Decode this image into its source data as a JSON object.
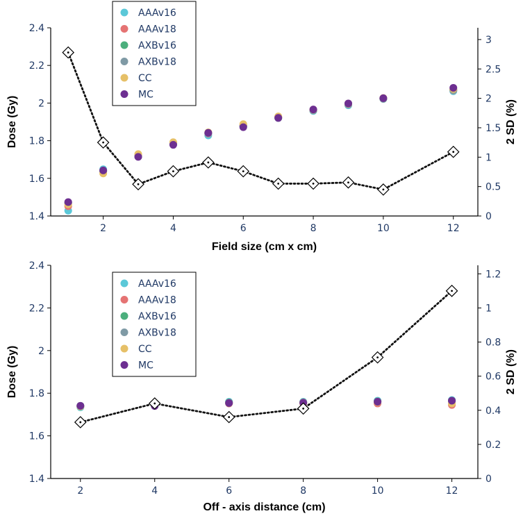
{
  "chart_data": [
    {
      "type": "scatter",
      "panel": "top",
      "xlabel": "Field size (cm x cm)",
      "ylabel": "Dose (Gy)",
      "y2label": "2 SD (%)",
      "xlim": [
        0.5,
        12.7
      ],
      "ylim": [
        1.4,
        2.4
      ],
      "y2lim": [
        0,
        3.2
      ],
      "xticks": [
        "2",
        "4",
        "6",
        "8",
        "10",
        "12"
      ],
      "yticks": [
        "1.4",
        "1.6",
        "1.8",
        "2",
        "2.2",
        "2.4"
      ],
      "y2ticks": [
        "0",
        "0.5",
        "1",
        "1.5",
        "2",
        "2.5",
        "3"
      ],
      "legend_position": "top-left",
      "x": [
        1,
        2,
        3,
        4,
        5,
        6,
        7,
        8,
        9,
        10,
        12
      ],
      "series": [
        {
          "name": "AAAv16",
          "color": "#5bc8d8",
          "values": [
            1.428,
            1.648,
            1.718,
            1.785,
            1.828,
            1.878,
            1.922,
            1.958,
            1.988,
            2.022,
            2.063
          ]
        },
        {
          "name": "AAAv18",
          "color": "#e57373",
          "values": [
            1.452,
            1.636,
            1.724,
            1.789,
            1.838,
            1.883,
            1.926,
            1.962,
            1.993,
            2.023,
            2.068
          ]
        },
        {
          "name": "AXBv16",
          "color": "#4caf7d",
          "values": [
            1.47,
            1.639,
            1.716,
            1.78,
            1.841,
            1.878,
            1.921,
            1.963,
            1.995,
            2.024,
            2.07
          ]
        },
        {
          "name": "AXBv18",
          "color": "#7f9aa5",
          "values": [
            1.468,
            1.641,
            1.716,
            1.781,
            1.84,
            1.877,
            1.921,
            1.962,
            1.994,
            2.024,
            2.07
          ]
        },
        {
          "name": "CC",
          "color": "#e6c068",
          "values": [
            1.462,
            1.626,
            1.729,
            1.792,
            1.844,
            1.888,
            1.929,
            1.965,
            1.997,
            2.027,
            2.075
          ]
        },
        {
          "name": "MC",
          "color": "#6d2f91",
          "values": [
            1.474,
            1.642,
            1.714,
            1.778,
            1.842,
            1.872,
            1.921,
            1.966,
            1.998,
            2.026,
            2.081
          ]
        }
      ],
      "sd_series": {
        "values": [
          2.78,
          1.25,
          0.54,
          0.76,
          0.91,
          0.76,
          0.55,
          0.55,
          0.57,
          0.45,
          1.09
        ]
      }
    },
    {
      "type": "scatter",
      "panel": "bottom",
      "xlabel": "Off - axis distance (cm)",
      "ylabel": "Dose (Gy)",
      "y2label": "2 SD (%)",
      "xlim": [
        1.2,
        12.7
      ],
      "ylim": [
        1.4,
        2.4
      ],
      "y2lim": [
        0,
        1.25
      ],
      "xticks": [
        "2",
        "4",
        "6",
        "8",
        "10",
        "12"
      ],
      "yticks": [
        "1.4",
        "1.6",
        "1.8",
        "2",
        "2.2",
        "2.4"
      ],
      "y2ticks": [
        "0",
        "0.2",
        "0.4",
        "0.6",
        "0.8",
        "1",
        "1.2"
      ],
      "legend_position": "top-left",
      "x": [
        2,
        4,
        6,
        8,
        10,
        12
      ],
      "series": [
        {
          "name": "AAAv16",
          "color": "#5bc8d8",
          "values": [
            1.734,
            1.745,
            1.76,
            1.76,
            1.765,
            1.768
          ]
        },
        {
          "name": "AAAv18",
          "color": "#e57373",
          "values": [
            1.74,
            1.748,
            1.752,
            1.752,
            1.752,
            1.745
          ]
        },
        {
          "name": "AXBv16",
          "color": "#4caf7d",
          "values": [
            1.741,
            1.742,
            1.757,
            1.757,
            1.762,
            1.765
          ]
        },
        {
          "name": "AXBv18",
          "color": "#7f9aa5",
          "values": [
            1.74,
            1.743,
            1.756,
            1.758,
            1.761,
            1.764
          ]
        },
        {
          "name": "CC",
          "color": "#e6c068",
          "values": [
            1.738,
            1.75,
            1.753,
            1.755,
            1.758,
            1.752
          ]
        },
        {
          "name": "MC",
          "color": "#6d2f91",
          "values": [
            1.741,
            1.74,
            1.754,
            1.755,
            1.76,
            1.765
          ]
        }
      ],
      "sd_series": {
        "values": [
          0.33,
          0.44,
          0.36,
          0.41,
          0.71,
          1.1
        ]
      }
    }
  ]
}
